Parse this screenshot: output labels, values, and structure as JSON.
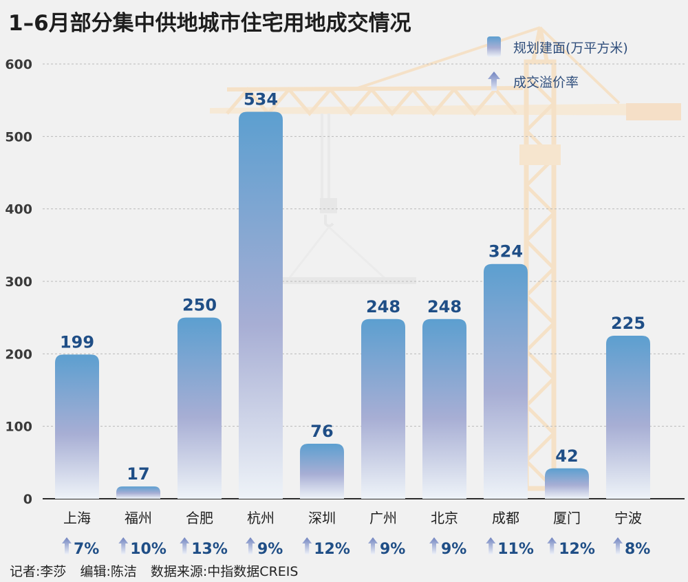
{
  "title": "1–6月部分集中供地城市住宅用地成交情况",
  "legend": {
    "area_label": "规划建面(万平方米)",
    "rate_label": "成交溢价率"
  },
  "credits": {
    "reporter": "记者:李莎",
    "editor": "编辑:陈洁",
    "source": "数据来源:中指数据CREIS"
  },
  "colors": {
    "bar_top": "#5c9fd0",
    "bar_mid": "#a7aed4",
    "bar_bottom": "#eef3f8",
    "value_label": "#1f4e86",
    "arrow": "#7b8fc4",
    "axis_text": "#333333",
    "background": "#f1f1f1"
  },
  "chart_data": {
    "type": "bar",
    "title": "1–6月部分集中供地城市住宅用地成交情况",
    "categories": [
      "上海",
      "福州",
      "合肥",
      "杭州",
      "深圳",
      "广州",
      "北京",
      "成都",
      "厦门",
      "宁波"
    ],
    "series": [
      {
        "name": "规划建面(万平方米)",
        "values": [
          199,
          17,
          250,
          534,
          76,
          248,
          248,
          324,
          42,
          225
        ]
      }
    ],
    "premium_rate_label": "成交溢价率",
    "premium_rates": [
      "7%",
      "10%",
      "13%",
      "9%",
      "12%",
      "9%",
      "9%",
      "11%",
      "12%",
      "8%"
    ],
    "value_labels": [
      "199",
      "17",
      "250",
      "534",
      "76",
      "248",
      "248",
      "324",
      "42",
      "225"
    ],
    "yticks": [
      "0",
      "100",
      "200",
      "300",
      "400",
      "500",
      "600"
    ],
    "ylim": [
      0,
      600
    ],
    "xlabel": "",
    "ylabel": "",
    "grid": true,
    "legend_position": "top-right"
  }
}
